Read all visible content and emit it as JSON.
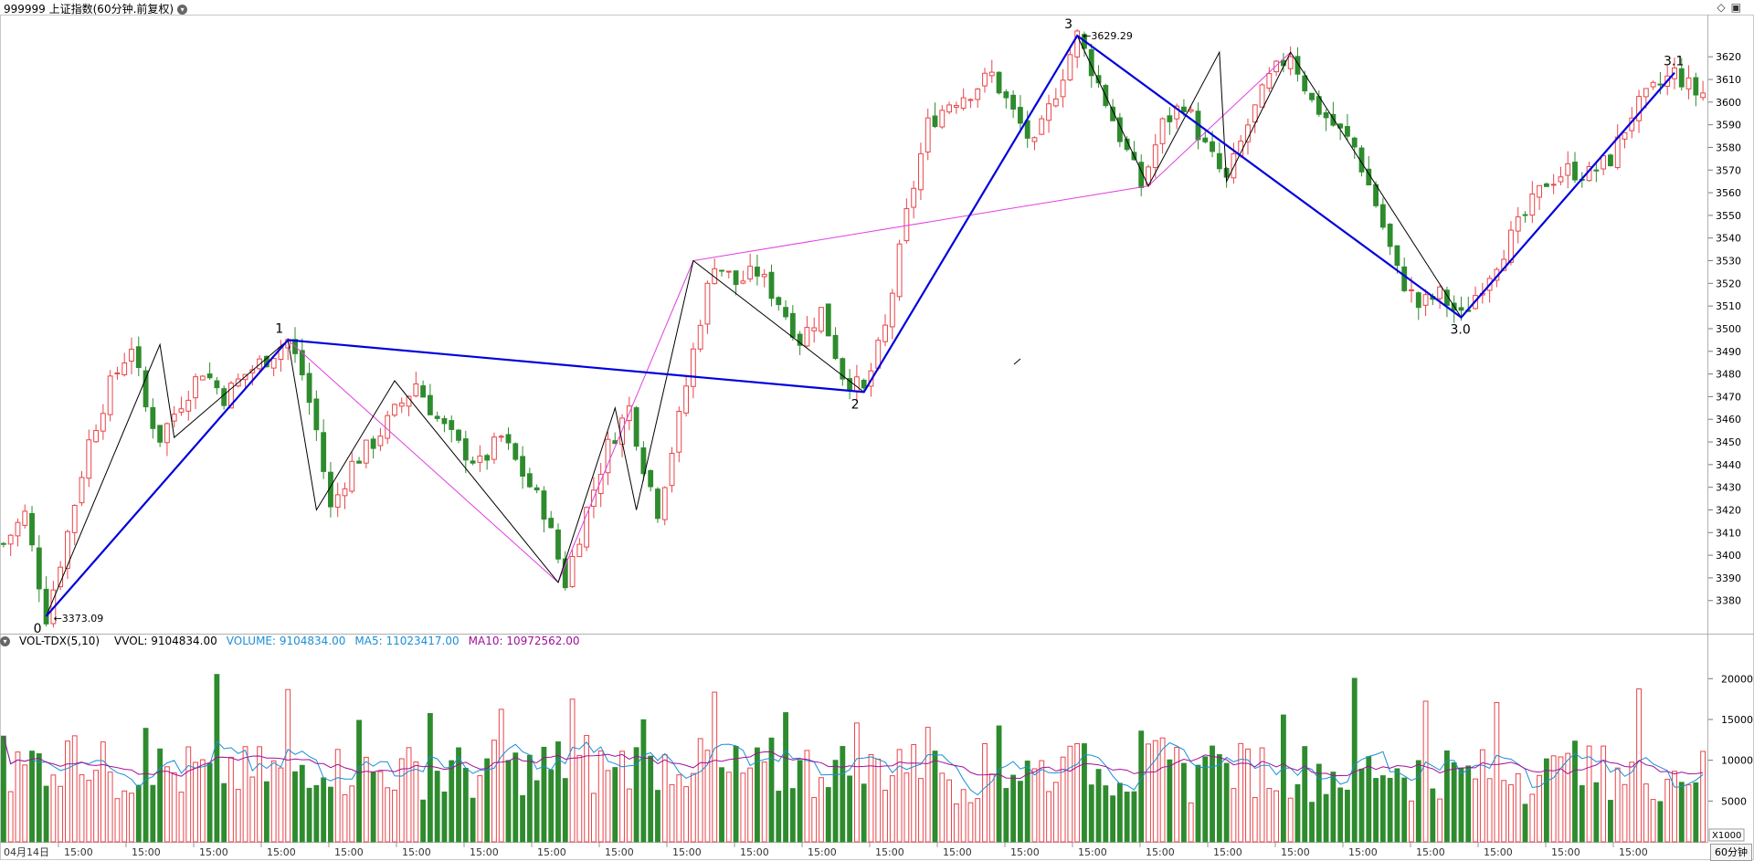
{
  "header": {
    "title": "999999 上证指数(60分钟.前复权)",
    "icons": [
      "dropdown-icon",
      "diamond-icon",
      "window-icon"
    ]
  },
  "colors": {
    "up": "#e8454a",
    "down": "#2e8b2e",
    "wave": "#0000dd",
    "subwave": "#000000",
    "channel": "#e040e0",
    "vol_line": "#1a8fd6",
    "ma5": "#1a8fd6",
    "ma10": "#a0109a"
  },
  "volume_header": {
    "name": "VOL-TDX(5,10)",
    "vvol": "VVOL: 9104834.00",
    "volume": "VOLUME: 9104834.00",
    "ma5": "MA5: 11023417.00",
    "ma10": "MA10: 10972562.00"
  },
  "period_label": "60分钟",
  "chart_data": [
    {
      "type": "candlestick",
      "title": "999999 上证指数(60分钟.前复权)",
      "ylim": [
        3367,
        3637
      ],
      "y_ticks": [
        3380,
        3390,
        3400,
        3410,
        3420,
        3430,
        3440,
        3450,
        3460,
        3470,
        3480,
        3490,
        3500,
        3510,
        3520,
        3530,
        3540,
        3550,
        3560,
        3570,
        3580,
        3590,
        3600,
        3610,
        3620
      ],
      "x_tick_labels": [
        "04月14日",
        "15:00",
        "15:00",
        "15:00",
        "15:00",
        "15:00",
        "15:00",
        "15:00",
        "15:00",
        "15:00",
        "15:00",
        "15:00",
        "15:00",
        "15:00",
        "15:00",
        "15:00",
        "15:00",
        "15:00",
        "15:00",
        "15:00",
        "15:00",
        "15:00",
        "15:00",
        "15:00",
        "15:00"
      ],
      "price_path": [
        [
          0,
          3405
        ],
        [
          3,
          3418
        ],
        [
          6,
          3373.09
        ],
        [
          9,
          3410
        ],
        [
          12,
          3450
        ],
        [
          15,
          3475
        ],
        [
          18,
          3493
        ],
        [
          20,
          3465
        ],
        [
          22,
          3452
        ],
        [
          25,
          3468
        ],
        [
          28,
          3482
        ],
        [
          31,
          3470
        ],
        [
          34,
          3480
        ],
        [
          37,
          3487
        ],
        [
          40,
          3495
        ],
        [
          42,
          3480
        ],
        [
          44,
          3455
        ],
        [
          46,
          3420
        ],
        [
          49,
          3440
        ],
        [
          52,
          3450
        ],
        [
          55,
          3463
        ],
        [
          58,
          3476
        ],
        [
          61,
          3460
        ],
        [
          64,
          3448
        ],
        [
          67,
          3440
        ],
        [
          70,
          3452
        ],
        [
          73,
          3436
        ],
        [
          76,
          3420
        ],
        [
          79,
          3388
        ],
        [
          82,
          3420
        ],
        [
          85,
          3448
        ],
        [
          88,
          3465
        ],
        [
          90,
          3440
        ],
        [
          92,
          3420
        ],
        [
          95,
          3460
        ],
        [
          98,
          3505
        ],
        [
          100,
          3530
        ],
        [
          103,
          3520
        ],
        [
          106,
          3525
        ],
        [
          109,
          3512
        ],
        [
          112,
          3495
        ],
        [
          115,
          3508
        ],
        [
          118,
          3480
        ],
        [
          121,
          3472
        ],
        [
          124,
          3500
        ],
        [
          127,
          3550
        ],
        [
          130,
          3590
        ],
        [
          133,
          3600
        ],
        [
          136,
          3605
        ],
        [
          139,
          3612
        ],
        [
          142,
          3595
        ],
        [
          145,
          3580
        ],
        [
          148,
          3605
        ],
        [
          151,
          3629.29
        ],
        [
          154,
          3608
        ],
        [
          157,
          3585
        ],
        [
          160,
          3563
        ],
        [
          163,
          3590
        ],
        [
          166,
          3600
        ],
        [
          169,
          3580
        ],
        [
          172,
          3565
        ],
        [
          175,
          3590
        ],
        [
          178,
          3610
        ],
        [
          181,
          3622
        ],
        [
          184,
          3600
        ],
        [
          187,
          3590
        ],
        [
          190,
          3580
        ],
        [
          193,
          3555
        ],
        [
          196,
          3525
        ],
        [
          199,
          3510
        ],
        [
          202,
          3515
        ],
        [
          205,
          3505
        ],
        [
          208,
          3520
        ],
        [
          211,
          3535
        ],
        [
          214,
          3550
        ],
        [
          217,
          3565
        ],
        [
          220,
          3570
        ],
        [
          223,
          3568
        ],
        [
          226,
          3575
        ],
        [
          229,
          3595
        ],
        [
          232,
          3605
        ],
        [
          235,
          3613
        ],
        [
          238,
          3604
        ]
      ],
      "annotations": [
        {
          "label": "0",
          "bar": 6,
          "price": 3373.09
        },
        {
          "label": "1",
          "bar": 40,
          "price": 3495
        },
        {
          "label": "2",
          "bar": 121,
          "price": 3472
        },
        {
          "label": "3",
          "bar": 151,
          "price": 3629.29
        },
        {
          "label": "3.0",
          "bar": 205,
          "price": 3505
        },
        {
          "label": "3.1",
          "bar": 235,
          "price": 3613
        }
      ],
      "price_labels": [
        "3373.09",
        "3629.29"
      ],
      "wave_lines": {
        "primary": [
          [
            6,
            3373.09
          ],
          [
            40,
            3495
          ],
          [
            121,
            3472
          ],
          [
            151,
            3629.29
          ],
          [
            205,
            3505
          ],
          [
            235,
            3613
          ]
        ],
        "secondary": [
          [
            6,
            3373.09
          ],
          [
            22,
            3493
          ],
          [
            24,
            3452
          ],
          [
            40,
            3495
          ],
          [
            44,
            3420
          ],
          [
            55,
            3477
          ],
          [
            78,
            3388
          ],
          [
            86,
            3465
          ],
          [
            89,
            3420
          ],
          [
            97,
            3530
          ],
          [
            121,
            3472
          ],
          [
            151,
            3629.29
          ],
          [
            161,
            3563
          ],
          [
            171,
            3622
          ],
          [
            172,
            3565
          ],
          [
            181,
            3622
          ],
          [
            205,
            3505
          ]
        ],
        "channel": [
          [
            40,
            3495
          ],
          [
            78,
            3388
          ],
          [
            97,
            3530
          ],
          [
            161,
            3563
          ],
          [
            181,
            3622
          ]
        ]
      }
    },
    {
      "type": "bar",
      "title": "VOL-TDX(5,10)",
      "unit_label": "X1000",
      "ylim": [
        0,
        23500
      ],
      "y_ticks": [
        5000,
        10000,
        15000,
        20000
      ],
      "last_values": {
        "volume": 9104834.0,
        "ma5": 11023417.0,
        "ma10": 10972562.0
      }
    }
  ]
}
